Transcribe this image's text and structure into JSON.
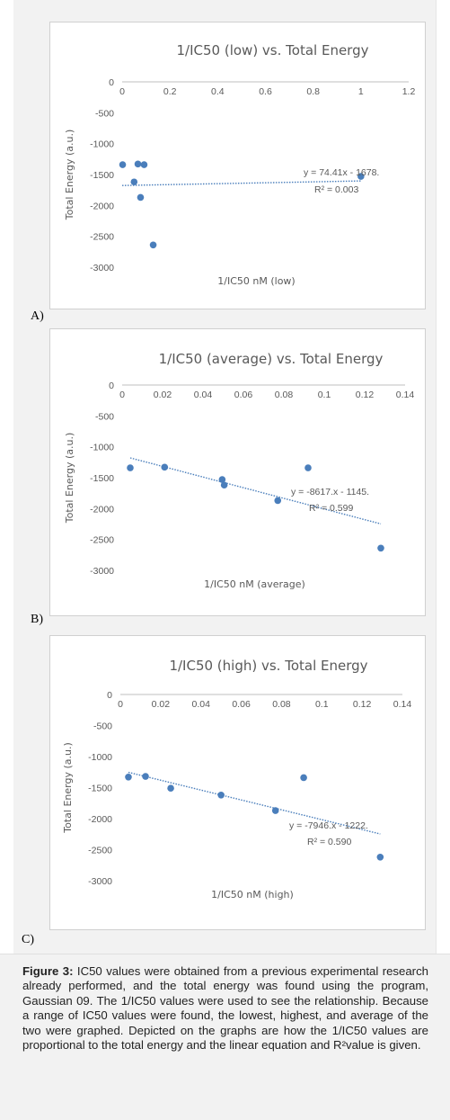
{
  "chart_data": [
    {
      "type": "scatter",
      "panel_label": "A)",
      "title": "1/IC50 (low) vs. Total Energy",
      "xlabel": "1/IC50 nM (low)",
      "ylabel": "Total Energy (a.u.)",
      "xlim": [
        0,
        1.2
      ],
      "ylim": [
        -3000,
        0
      ],
      "x_ticks": [
        "0",
        "0.2",
        "0.4",
        "0.6",
        "0.8",
        "1",
        "1.2"
      ],
      "y_ticks": [
        "0",
        "-500",
        "-1000",
        "-1500",
        "-2000",
        "-2500",
        "-3000"
      ],
      "points": [
        {
          "x": 0.002,
          "y": -1340
        },
        {
          "x": 0.05,
          "y": -1620
        },
        {
          "x": 0.066,
          "y": -1330
        },
        {
          "x": 0.077,
          "y": -1870
        },
        {
          "x": 0.092,
          "y": -1340
        },
        {
          "x": 0.13,
          "y": -2640
        },
        {
          "x": 1.0,
          "y": -1530
        }
      ],
      "trendline": {
        "slope": 74.41,
        "intercept": -1678,
        "x_range": [
          0,
          1.0
        ]
      },
      "equation": "y = 74.41x - 1678.",
      "r2": "R² = 0.003",
      "grid": false,
      "color": "#4a7ebb"
    },
    {
      "type": "scatter",
      "panel_label": "B)",
      "title": "1/IC50 (average) vs. Total Energy",
      "xlabel": "1/IC50 nM (average)",
      "ylabel": "Total Energy (a.u.)",
      "xlim": [
        0,
        0.14
      ],
      "ylim": [
        -3000,
        0
      ],
      "x_ticks": [
        "0",
        "0.02",
        "0.04",
        "0.06",
        "0.08",
        "0.1",
        "0.12",
        "0.14"
      ],
      "y_ticks": [
        "0",
        "-500",
        "-1000",
        "-1500",
        "-2000",
        "-2500",
        "-3000"
      ],
      "points": [
        {
          "x": 0.004,
          "y": -1340
        },
        {
          "x": 0.021,
          "y": -1330
        },
        {
          "x": 0.0495,
          "y": -1530
        },
        {
          "x": 0.0505,
          "y": -1620
        },
        {
          "x": 0.077,
          "y": -1870
        },
        {
          "x": 0.092,
          "y": -1340
        },
        {
          "x": 0.128,
          "y": -2640
        }
      ],
      "trendline": {
        "slope": -8617,
        "intercept": -1145,
        "x_range": [
          0.004,
          0.128
        ]
      },
      "equation": "y = -8617.x - 1145.",
      "r2": "R² = 0.599",
      "grid": false,
      "color": "#4a7ebb"
    },
    {
      "type": "scatter",
      "panel_label": "C)",
      "title": "1/IC50 (high) vs. Total Energy",
      "xlabel": "1/IC50 nM (high)",
      "ylabel": "Total Energy (a.u.)",
      "xlim": [
        0,
        0.14
      ],
      "ylim": [
        -3000,
        0
      ],
      "x_ticks": [
        "0",
        "0.02",
        "0.04",
        "0.06",
        "0.08",
        "0.1",
        "0.12",
        "0.14"
      ],
      "y_ticks": [
        "0",
        "-500",
        "-1000",
        "-1500",
        "-2000",
        "-2500",
        "-3000"
      ],
      "points": [
        {
          "x": 0.004,
          "y": -1330
        },
        {
          "x": 0.0125,
          "y": -1320
        },
        {
          "x": 0.025,
          "y": -1510
        },
        {
          "x": 0.05,
          "y": -1620
        },
        {
          "x": 0.077,
          "y": -1870
        },
        {
          "x": 0.091,
          "y": -1340
        },
        {
          "x": 0.129,
          "y": -2620
        }
      ],
      "trendline": {
        "slope": -7946,
        "intercept": -1222,
        "x_range": [
          0.004,
          0.129
        ]
      },
      "equation": "y = -7946.x - 1222.",
      "r2": "R² = 0.590",
      "grid": false,
      "color": "#4a7ebb"
    }
  ],
  "caption": {
    "label": "Figure 3:",
    "text": " IC50 values were obtained from a previous experimental research already performed, and the total energy was found using the program, Gaussian 09. The 1/IC50 values were used to see the relationship. Because a range of IC50 values were found, the lowest, highest, and average of the two were graphed. Depicted on the graphs are how the 1/IC50 values are proportional to the total energy and the linear equation and R²value is given."
  }
}
